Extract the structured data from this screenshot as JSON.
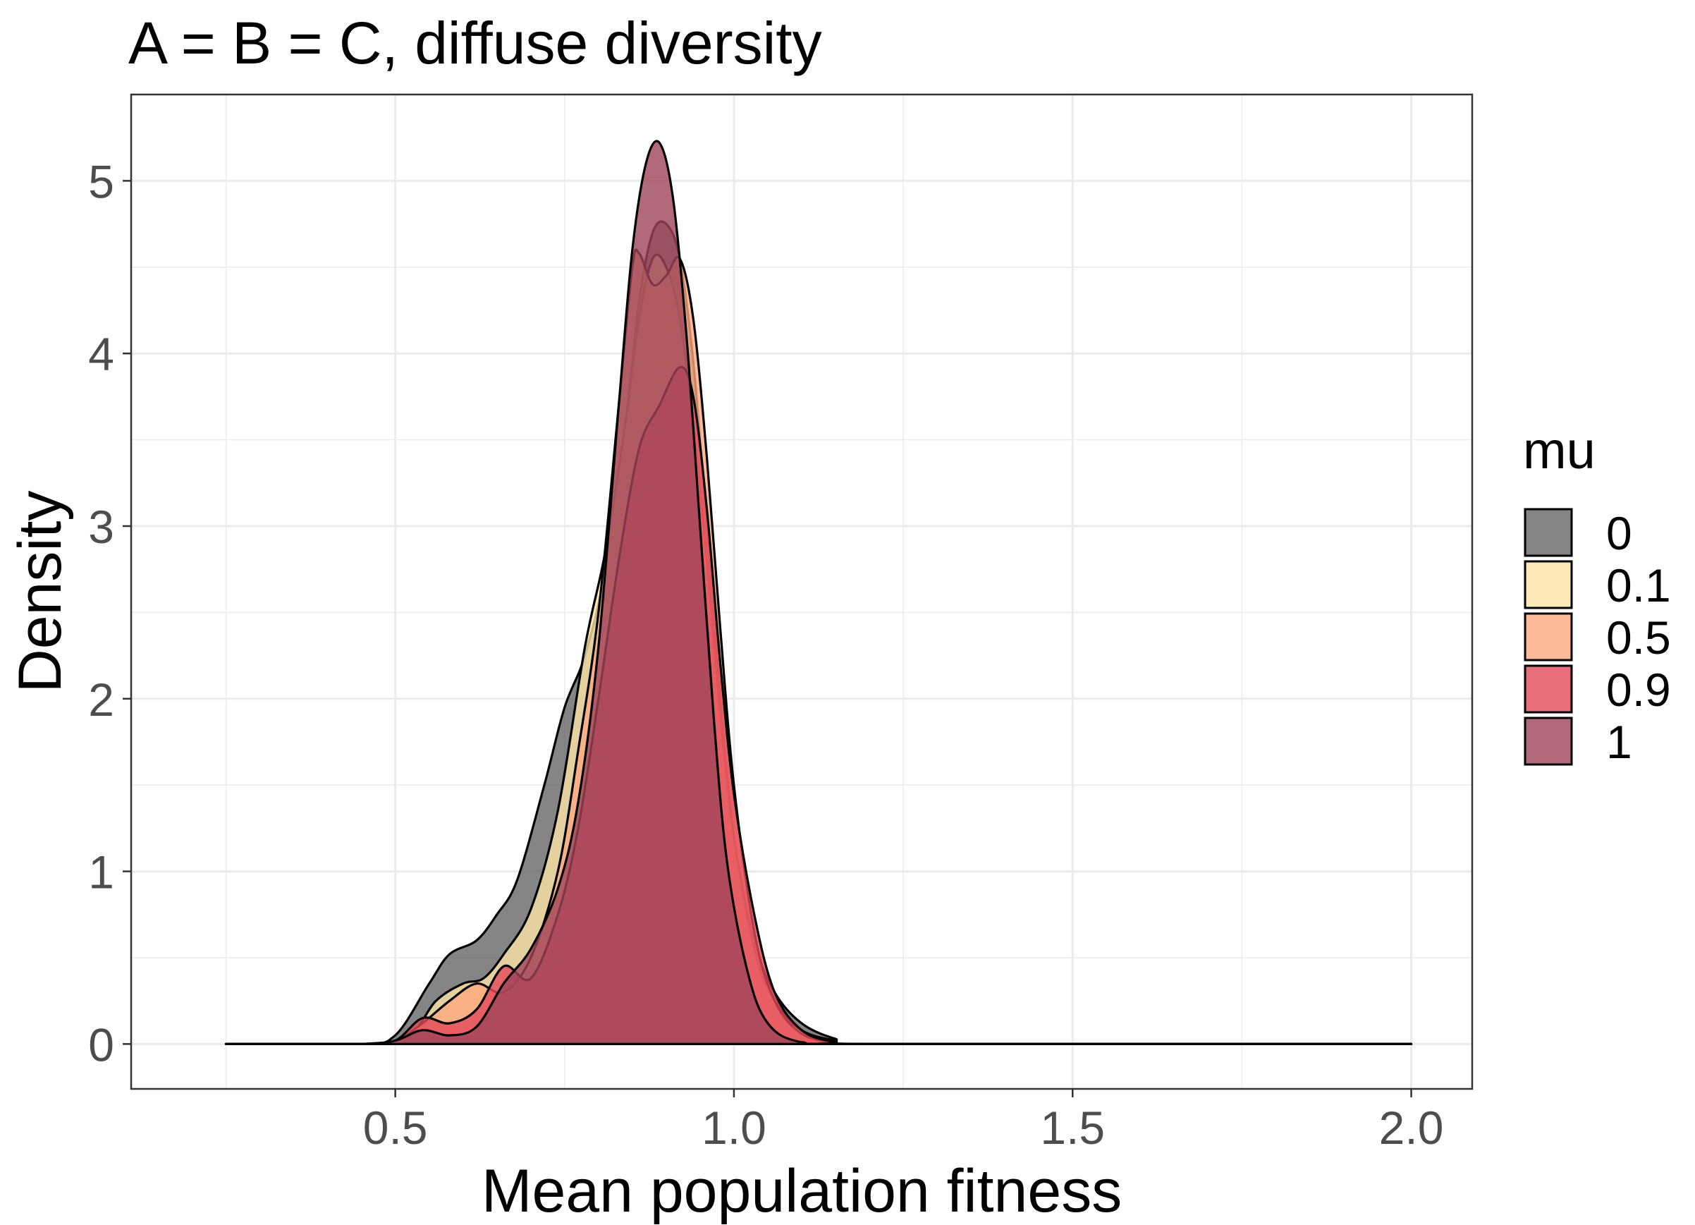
{
  "chart_data": {
    "type": "area",
    "subtype": "density",
    "title": "A = B = C, diffuse diversity",
    "xlabel": "Mean population fitness",
    "ylabel": "Density",
    "xlim": [
      0.11,
      2.09
    ],
    "ylim": [
      -0.26,
      5.5
    ],
    "x_ticks": [
      0.5,
      1.0,
      1.5,
      2.0
    ],
    "x_tick_labels": [
      "0.5",
      "1.0",
      "1.5",
      "2.0"
    ],
    "y_ticks": [
      0,
      1,
      2,
      3,
      4,
      5
    ],
    "y_tick_labels": [
      "0",
      "1",
      "2",
      "3",
      "4",
      "5"
    ],
    "grid": true,
    "legend": {
      "title": "mu",
      "position": "right"
    },
    "series": [
      {
        "name": "0",
        "color": "#666666",
        "x": [
          0.25,
          0.45,
          0.5,
          0.55,
          0.58,
          0.62,
          0.65,
          0.68,
          0.72,
          0.75,
          0.78,
          0.81,
          0.84,
          0.86,
          0.88,
          0.9,
          0.92,
          0.94,
          0.96,
          0.98,
          1.0,
          1.03,
          1.06,
          1.1,
          1.15,
          1.2,
          2.0
        ],
        "y": [
          0,
          0,
          0.05,
          0.35,
          0.52,
          0.6,
          0.75,
          0.95,
          1.5,
          1.95,
          2.25,
          2.75,
          3.6,
          4.3,
          4.7,
          4.75,
          4.55,
          3.95,
          3.0,
          2.0,
          1.2,
          0.6,
          0.3,
          0.12,
          0.03,
          0,
          0
        ]
      },
      {
        "name": "0.1",
        "color": "#fde4a5",
        "x": [
          0.25,
          0.45,
          0.52,
          0.56,
          0.6,
          0.63,
          0.66,
          0.7,
          0.74,
          0.78,
          0.81,
          0.84,
          0.86,
          0.88,
          0.9,
          0.92,
          0.94,
          0.96,
          0.98,
          1.0,
          1.03,
          1.06,
          1.1,
          1.15,
          1.2,
          2.0
        ],
        "y": [
          0,
          0,
          0.05,
          0.25,
          0.35,
          0.38,
          0.52,
          0.78,
          1.35,
          2.3,
          2.85,
          3.6,
          4.2,
          4.55,
          4.5,
          4.2,
          3.6,
          2.8,
          1.9,
          1.2,
          0.55,
          0.25,
          0.08,
          0.02,
          0,
          0
        ]
      },
      {
        "name": "0.5",
        "color": "#fba97e",
        "x": [
          0.25,
          0.45,
          0.5,
          0.54,
          0.58,
          0.62,
          0.66,
          0.7,
          0.74,
          0.77,
          0.8,
          0.83,
          0.85,
          0.86,
          0.88,
          0.9,
          0.92,
          0.94,
          0.96,
          0.98,
          1.0,
          1.03,
          1.06,
          1.1,
          1.15,
          1.2,
          2.0
        ],
        "y": [
          0,
          0,
          0.02,
          0.12,
          0.25,
          0.35,
          0.3,
          0.5,
          1.0,
          1.7,
          2.5,
          3.7,
          4.5,
          4.58,
          4.4,
          4.45,
          4.55,
          4.2,
          3.4,
          2.4,
          1.5,
          0.65,
          0.25,
          0.06,
          0.01,
          0,
          0
        ]
      },
      {
        "name": "0.9",
        "color": "#e34a5a",
        "x": [
          0.25,
          0.45,
          0.5,
          0.54,
          0.58,
          0.62,
          0.66,
          0.7,
          0.74,
          0.77,
          0.8,
          0.83,
          0.86,
          0.89,
          0.92,
          0.94,
          0.96,
          0.98,
          1.0,
          1.03,
          1.06,
          1.1,
          1.15,
          1.2,
          2.0
        ],
        "y": [
          0,
          0,
          0.02,
          0.15,
          0.12,
          0.2,
          0.45,
          0.38,
          0.75,
          1.25,
          2.0,
          2.8,
          3.45,
          3.7,
          3.92,
          3.75,
          3.1,
          2.2,
          1.45,
          0.75,
          0.3,
          0.08,
          0.01,
          0,
          0
        ]
      },
      {
        "name": "1",
        "color": "#9f4559",
        "x": [
          0.25,
          0.45,
          0.5,
          0.54,
          0.58,
          0.62,
          0.66,
          0.7,
          0.74,
          0.77,
          0.8,
          0.83,
          0.85,
          0.87,
          0.89,
          0.91,
          0.93,
          0.95,
          0.97,
          0.99,
          1.02,
          1.05,
          1.1,
          1.2,
          2.0
        ],
        "y": [
          0,
          0,
          0.02,
          0.08,
          0.05,
          0.1,
          0.35,
          0.55,
          0.9,
          1.4,
          2.3,
          3.7,
          4.6,
          5.1,
          5.22,
          4.9,
          4.1,
          3.0,
          1.9,
          1.05,
          0.42,
          0.12,
          0.01,
          0,
          0
        ]
      }
    ]
  }
}
